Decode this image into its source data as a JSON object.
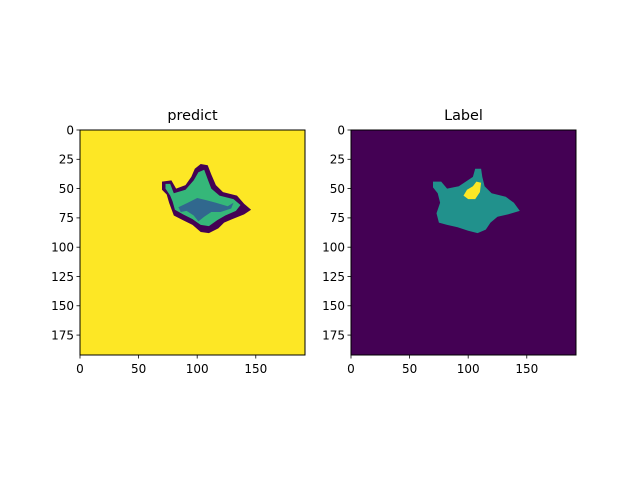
{
  "chart_data": [
    {
      "type": "heatmap",
      "title": "predict",
      "xlim": [
        0,
        192
      ],
      "ylim": [
        192,
        0
      ],
      "xticks": [
        0,
        50,
        100,
        150
      ],
      "yticks": [
        0,
        25,
        50,
        75,
        100,
        125,
        150,
        175
      ],
      "colormap": "viridis",
      "background_color": "#fde725",
      "regions": [
        {
          "class": "outer-boundary",
          "color": "#440154",
          "polygon": [
            [
              70,
              44
            ],
            [
              78,
              43
            ],
            [
              82,
              50
            ],
            [
              90,
              47
            ],
            [
              95,
              40
            ],
            [
              98,
              33
            ],
            [
              103,
              29
            ],
            [
              109,
              30
            ],
            [
              112,
              38
            ],
            [
              116,
              47
            ],
            [
              122,
              53
            ],
            [
              134,
              56
            ],
            [
              140,
              63
            ],
            [
              146,
              68
            ],
            [
              140,
              72
            ],
            [
              130,
              76
            ],
            [
              123,
              79
            ],
            [
              118,
              84
            ],
            [
              110,
              88
            ],
            [
              103,
              87
            ],
            [
              96,
              81
            ],
            [
              88,
              77
            ],
            [
              80,
              73
            ],
            [
              76,
              62
            ],
            [
              74,
              55
            ],
            [
              70,
              51
            ]
          ]
        },
        {
          "class": "region-green",
          "color": "#35b779",
          "polygon": [
            [
              73,
              46
            ],
            [
              77,
              46
            ],
            [
              80,
              54
            ],
            [
              90,
              51
            ],
            [
              97,
              43
            ],
            [
              101,
              36
            ],
            [
              106,
              34
            ],
            [
              109,
              42
            ],
            [
              112,
              50
            ],
            [
              119,
              56
            ],
            [
              131,
              59
            ],
            [
              137,
              64
            ],
            [
              133,
              69
            ],
            [
              124,
              73
            ],
            [
              117,
              77
            ],
            [
              110,
              82
            ],
            [
              103,
              81
            ],
            [
              96,
              76
            ],
            [
              88,
              72
            ],
            [
              81,
              68
            ],
            [
              79,
              61
            ],
            [
              77,
              56
            ],
            [
              73,
              50
            ]
          ]
        },
        {
          "class": "region-teal",
          "color": "#31688e",
          "polygon": [
            [
              84,
              66
            ],
            [
              92,
              62
            ],
            [
              100,
              58
            ],
            [
              108,
              60
            ],
            [
              116,
              62
            ],
            [
              126,
              65
            ],
            [
              131,
              62
            ],
            [
              129,
              67
            ],
            [
              120,
              70
            ],
            [
              112,
              70
            ],
            [
              106,
              74
            ],
            [
              101,
              78
            ],
            [
              97,
              73
            ],
            [
              91,
              69
            ],
            [
              86,
              70
            ]
          ]
        }
      ]
    },
    {
      "type": "heatmap",
      "title": "Label",
      "xlim": [
        0,
        192
      ],
      "ylim": [
        192,
        0
      ],
      "xticks": [
        0,
        50,
        100,
        150
      ],
      "yticks": [
        0,
        25,
        50,
        75,
        100,
        125,
        150,
        175
      ],
      "colormap": "viridis",
      "background_color": "#440154",
      "regions": [
        {
          "class": "region-teal",
          "color": "#21918c",
          "polygon": [
            [
              70,
              44
            ],
            [
              77,
              44
            ],
            [
              82,
              50
            ],
            [
              92,
              48
            ],
            [
              98,
              44
            ],
            [
              104,
              40
            ],
            [
              106,
              33
            ],
            [
              111,
              33
            ],
            [
              112,
              40
            ],
            [
              114,
              48
            ],
            [
              120,
              54
            ],
            [
              132,
              57
            ],
            [
              139,
              62
            ],
            [
              144,
              69
            ],
            [
              134,
              72
            ],
            [
              125,
              74
            ],
            [
              119,
              79
            ],
            [
              115,
              85
            ],
            [
              108,
              88
            ],
            [
              100,
              86
            ],
            [
              91,
              83
            ],
            [
              82,
              81
            ],
            [
              75,
              79
            ],
            [
              73,
              71
            ],
            [
              76,
              62
            ],
            [
              74,
              54
            ],
            [
              70,
              49
            ]
          ]
        },
        {
          "class": "region-yellow",
          "color": "#fde725",
          "polygon": [
            [
              96,
              56
            ],
            [
              99,
              51
            ],
            [
              104,
              48
            ],
            [
              107,
              44
            ],
            [
              111,
              45
            ],
            [
              110,
              53
            ],
            [
              106,
              59
            ],
            [
              100,
              59
            ]
          ]
        }
      ]
    }
  ]
}
